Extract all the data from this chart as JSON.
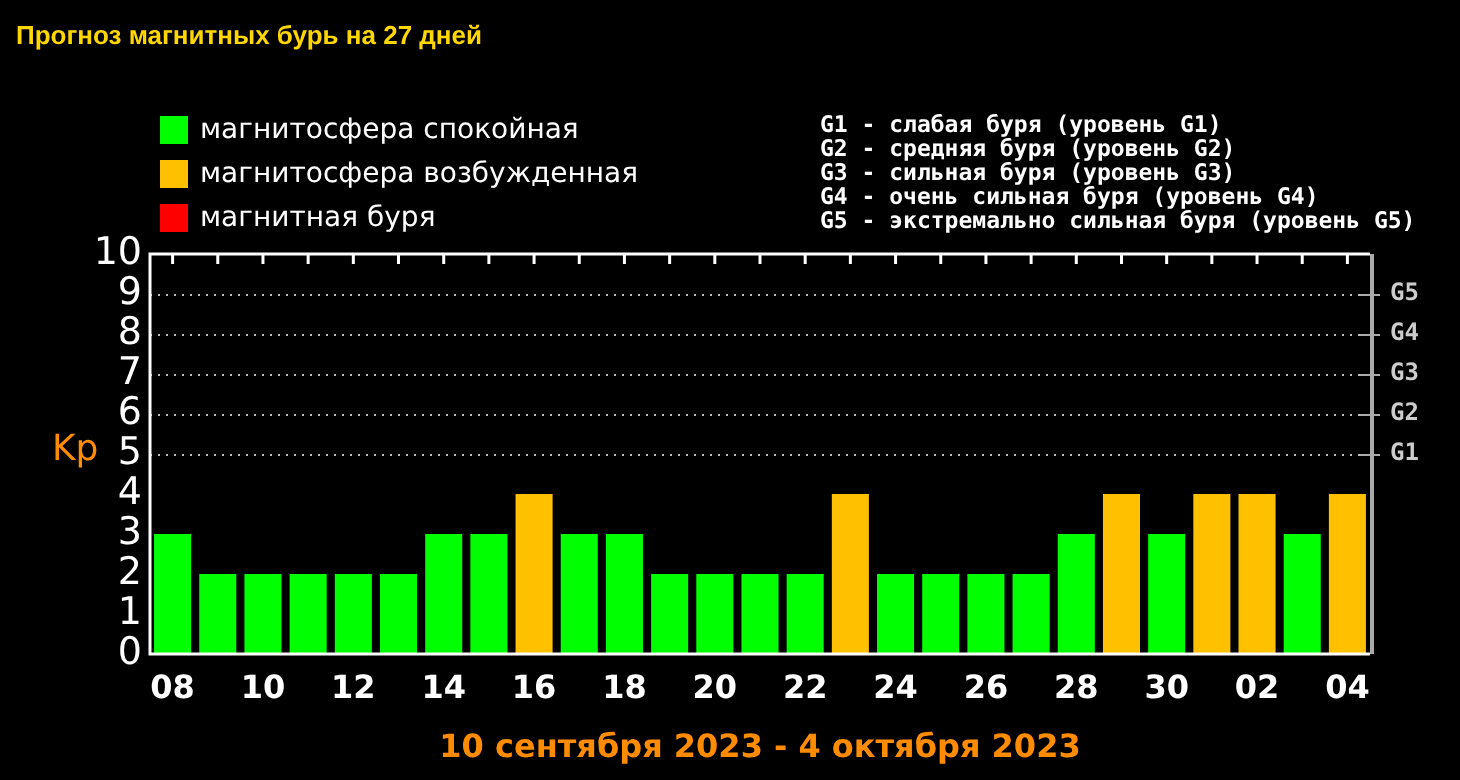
{
  "chart_data": {
    "type": "bar",
    "title": "Прогноз магнитных бурь на 27 дней",
    "xlabel": "10 сентября 2023 - 4 октября 2023",
    "ylabel": "Kp",
    "categories": [
      "08",
      null,
      "10",
      null,
      "12",
      null,
      "14",
      null,
      "16",
      null,
      "18",
      null,
      "20",
      null,
      "22",
      null,
      "24",
      null,
      "26",
      null,
      "28",
      null,
      "30",
      null,
      "02",
      null,
      "04"
    ],
    "series": [
      {
        "name": "магнитосфера спокойная",
        "color": "#00ff00",
        "values": [
          3,
          2,
          2,
          2,
          2,
          2,
          3,
          3,
          null,
          3,
          3,
          2,
          2,
          2,
          2,
          null,
          2,
          2,
          2,
          2,
          3,
          null,
          3,
          null,
          null,
          3,
          null
        ]
      },
      {
        "name": "магнитосфера возбужденная",
        "color": "#ffc000",
        "values": [
          null,
          null,
          null,
          null,
          null,
          null,
          null,
          null,
          4,
          null,
          null,
          null,
          null,
          null,
          null,
          4,
          null,
          null,
          null,
          null,
          null,
          4,
          null,
          4,
          4,
          null,
          4
        ]
      },
      {
        "name": "магнитная буря",
        "color": "#ff0000",
        "values": [
          null,
          null,
          null,
          null,
          null,
          null,
          null,
          null,
          null,
          null,
          null,
          null,
          null,
          null,
          null,
          null,
          null,
          null,
          null,
          null,
          null,
          null,
          null,
          null,
          null,
          null,
          null
        ]
      }
    ],
    "ylim": [
      0,
      10
    ],
    "yticks": [
      0,
      1,
      2,
      3,
      4,
      5,
      6,
      7,
      8,
      9,
      10
    ],
    "ref_lines": [
      {
        "axis": "y",
        "value": 5,
        "label": "G1",
        "color": "#bbbbbb",
        "line_style": "dotted"
      },
      {
        "axis": "y",
        "value": 6,
        "label": "G2",
        "color": "#bbbbbb",
        "line_style": "dotted"
      },
      {
        "axis": "y",
        "value": 7,
        "label": "G3",
        "color": "#bbbbbb",
        "line_style": "dotted"
      },
      {
        "axis": "y",
        "value": 8,
        "label": "G4",
        "color": "#bbbbbb",
        "line_style": "dotted"
      },
      {
        "axis": "y",
        "value": 9,
        "label": "G5",
        "color": "#bbbbbb",
        "line_style": "dotted"
      }
    ],
    "annotations": [
      "G1 - слабая буря (уровень G1)",
      "G2 - средняя буря (уровень G2)",
      "G3 - сильная буря (уровень G3)",
      "G4 - очень сильная буря (уровень G4)",
      "G5 - экстремально сильная буря (уровень G5)"
    ],
    "legend": "top left",
    "grid": false
  }
}
